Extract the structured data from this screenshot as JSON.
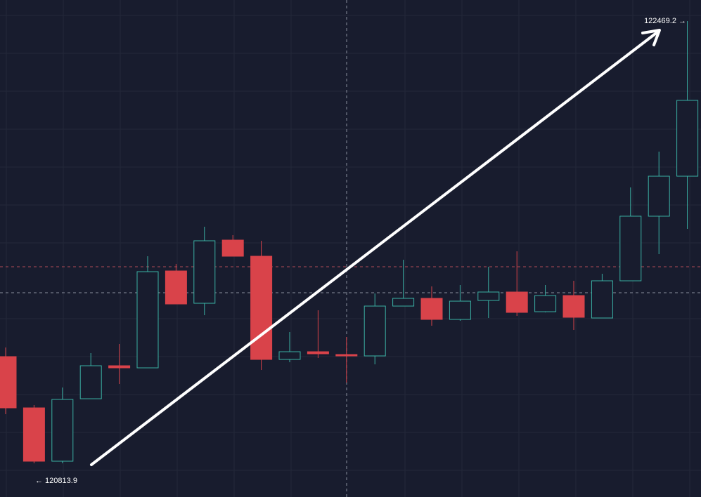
{
  "chart_data": {
    "type": "candlestick",
    "open": [
      121213.3,
      121021.4,
      120821.8,
      121055.6,
      121179.1,
      121171.2,
      121533.8,
      121412.9,
      121649.4,
      121589.0,
      121202.7,
      121231.6,
      121221.1,
      121215.9,
      121402.4,
      121431.3,
      121352.5,
      121423.5,
      121455.0,
      121381.4,
      121441.8,
      121357.8,
      121497.0,
      121738.8,
      121888.5
    ],
    "high": [
      121247.4,
      121032.0,
      121097.6,
      121226.4,
      121260.5,
      121589.0,
      121560.1,
      121699.3,
      121667.8,
      121646.8,
      121305.2,
      121386.7,
      121286.8,
      121449.7,
      121575.8,
      121476.0,
      121481.3,
      121549.6,
      121607.4,
      121481.3,
      121497.0,
      121523.3,
      121846.5,
      121980.5,
      122469.2
    ],
    "low": [
      120997.8,
      120813.9,
      120813.9,
      121055.6,
      121110.8,
      121171.2,
      121410.3,
      121368.3,
      121589.0,
      121163.3,
      121192.2,
      121208.0,
      121116.0,
      121184.4,
      121402.4,
      121328.9,
      121347.3,
      121357.8,
      121365.6,
      121378.8,
      121313.1,
      121357.8,
      121497.0,
      121596.9,
      121691.5
    ],
    "close": [
      121021.4,
      120821.8,
      121053.0,
      121179.1,
      121171.2,
      121531.2,
      121410.3,
      121646.8,
      121589.0,
      121202.7,
      121231.6,
      121223.8,
      121215.9,
      121402.4,
      121431.3,
      121352.5,
      121420.8,
      121455.0,
      121378.8,
      121441.8,
      121360.4,
      121497.0,
      121738.8,
      121888.5,
      122172.3
    ],
    "up_color": "#3ab0a3",
    "down_color": "#d9434a",
    "ylim": [
      120687.8,
      122548.0
    ],
    "annotations": [
      "122469.2 →",
      "← 120813.9"
    ]
  }
}
